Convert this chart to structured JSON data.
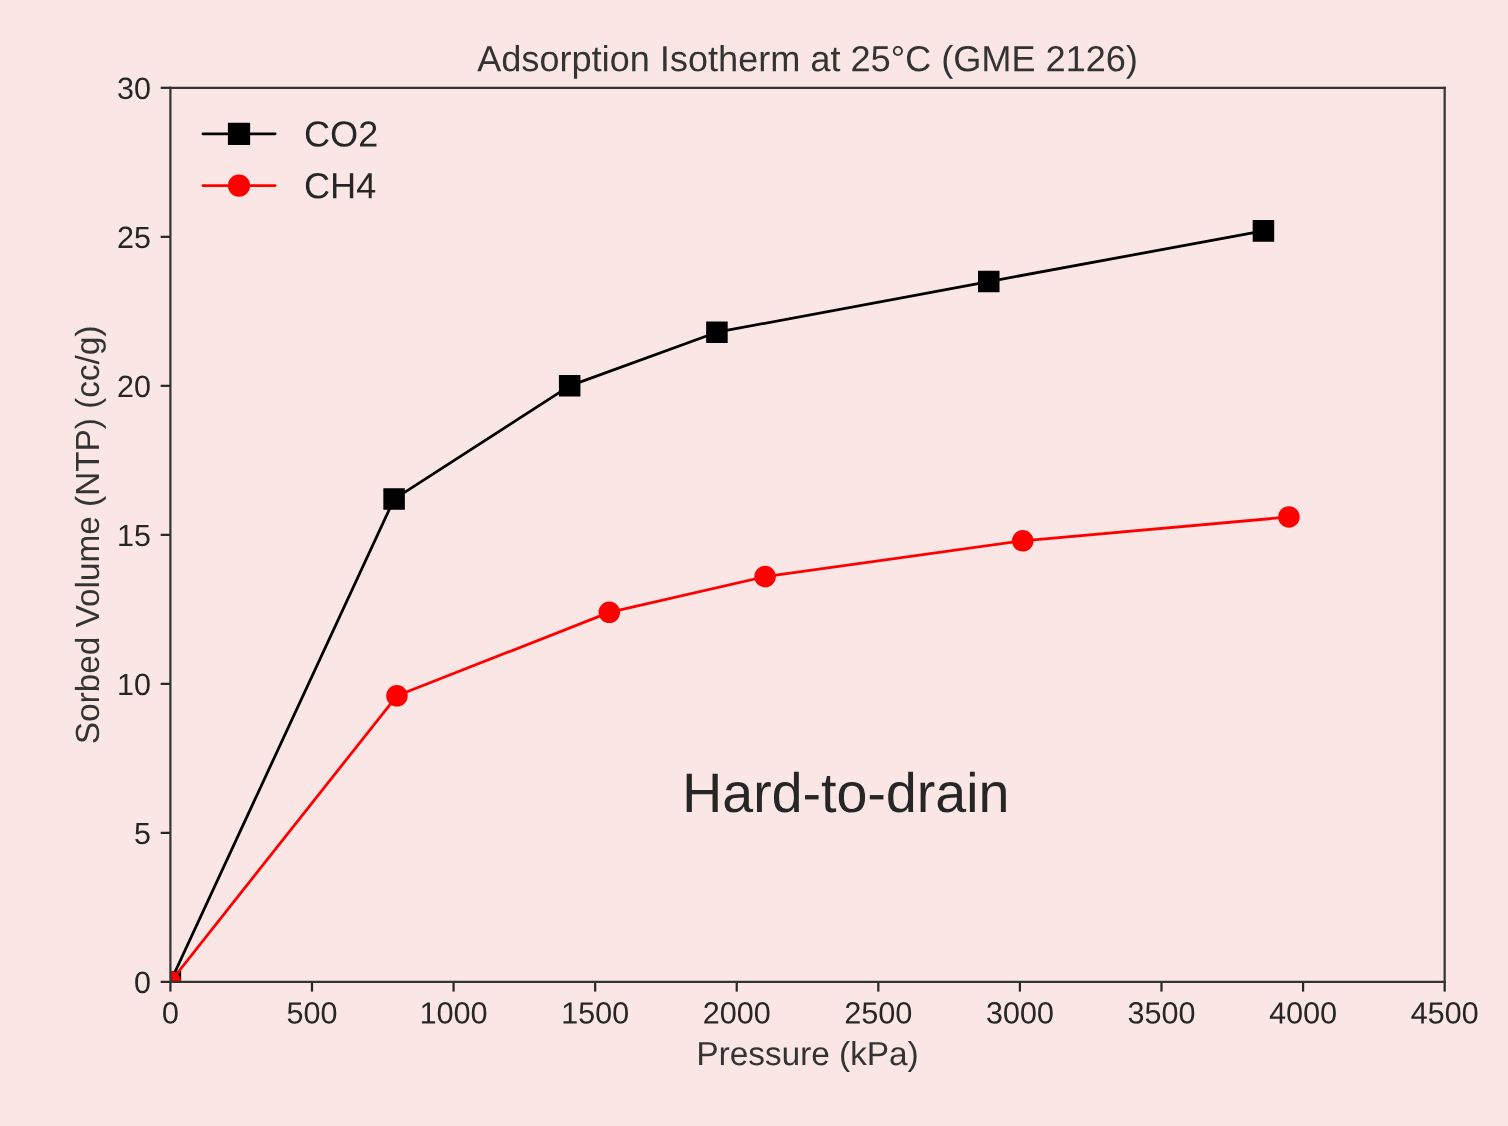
{
  "chart_data": {
    "type": "line",
    "title": "Adsorption Isotherm at 25°C (GME 2126)",
    "xlabel": "Pressure (kPa)",
    "ylabel": "Sorbed Volume (NTP) (cc/g)",
    "series": [
      {
        "name": "CO2",
        "color": "#000000",
        "marker": "square",
        "x": [
          0,
          790,
          1410,
          1930,
          2890,
          3860
        ],
        "values": [
          0,
          16.2,
          20.0,
          21.8,
          23.5,
          25.2
        ]
      },
      {
        "name": "CH4",
        "color": "#ff0000",
        "marker": "circle",
        "x": [
          0,
          800,
          1550,
          2100,
          3010,
          3950
        ],
        "values": [
          0,
          9.6,
          12.4,
          13.6,
          14.8,
          15.6
        ]
      }
    ],
    "xlim": [
      0,
      4500
    ],
    "xticks": [
      0,
      500,
      1000,
      1500,
      2000,
      2500,
      3000,
      3500,
      4000,
      4500
    ],
    "ylim": [
      0,
      30
    ],
    "yticks": [
      0,
      5,
      10,
      15,
      20,
      25,
      30
    ],
    "grid": false,
    "legend": "top left",
    "line_style": "solid",
    "annotations": [
      "Hard-to-drain"
    ]
  }
}
